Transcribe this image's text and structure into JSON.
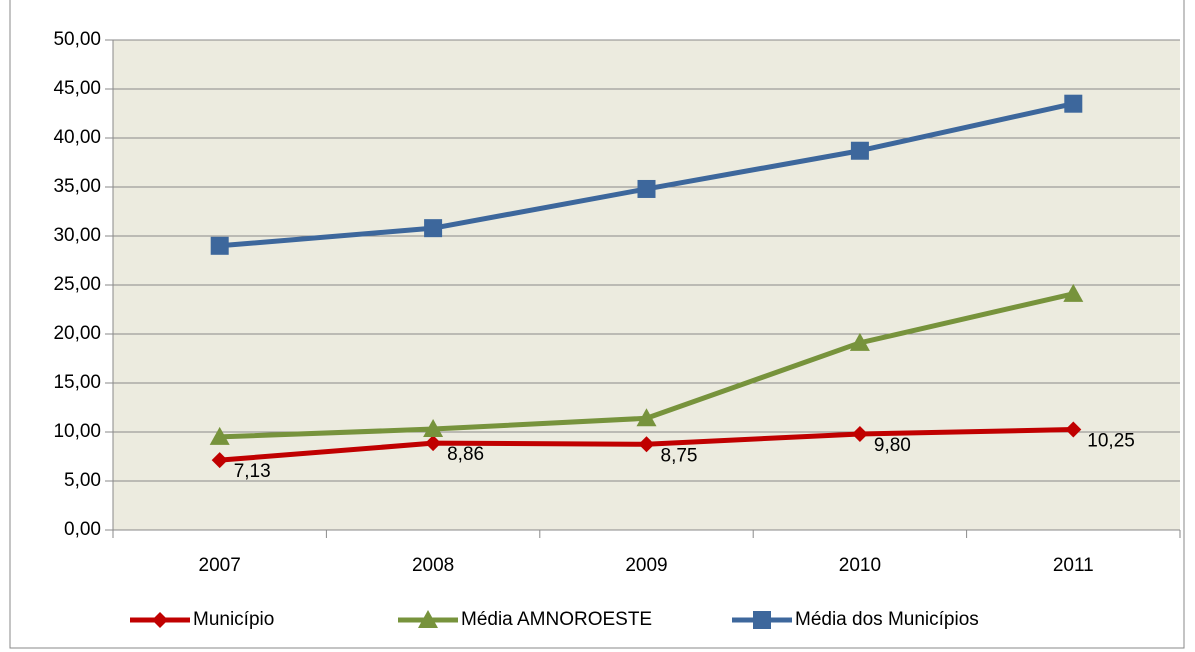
{
  "chart_data": {
    "type": "line",
    "categories": [
      "2007",
      "2008",
      "2009",
      "2010",
      "2011"
    ],
    "series": [
      {
        "name": "Município",
        "color": "#c00000",
        "marker": "diamond",
        "values": [
          7.13,
          8.86,
          8.75,
          9.8,
          10.25
        ],
        "value_labels": [
          "7,13",
          "8,86",
          "8,75",
          "9,80",
          "10,25"
        ]
      },
      {
        "name": "Média AMNOROESTE",
        "color": "#77933c",
        "marker": "triangle",
        "values": [
          9.5,
          10.3,
          11.4,
          19.1,
          24.1
        ]
      },
      {
        "name": "Média dos Municípios",
        "color": "#3d679c",
        "marker": "square",
        "values": [
          29.0,
          30.8,
          34.8,
          38.7,
          43.5
        ]
      }
    ],
    "ylim": [
      0,
      50
    ],
    "yticks": [
      {
        "value": 0,
        "label": "0,00"
      },
      {
        "value": 5,
        "label": "5,00"
      },
      {
        "value": 10,
        "label": "10,00"
      },
      {
        "value": 15,
        "label": "15,00"
      },
      {
        "value": 20,
        "label": "20,00"
      },
      {
        "value": 25,
        "label": "25,00"
      },
      {
        "value": 30,
        "label": "30,00"
      },
      {
        "value": 35,
        "label": "35,00"
      },
      {
        "value": 40,
        "label": "40,00"
      },
      {
        "value": 45,
        "label": "45,00"
      },
      {
        "value": 50,
        "label": "50,00"
      }
    ],
    "grid": true,
    "legend": "bottom",
    "plot_background": "#ecebdf"
  }
}
